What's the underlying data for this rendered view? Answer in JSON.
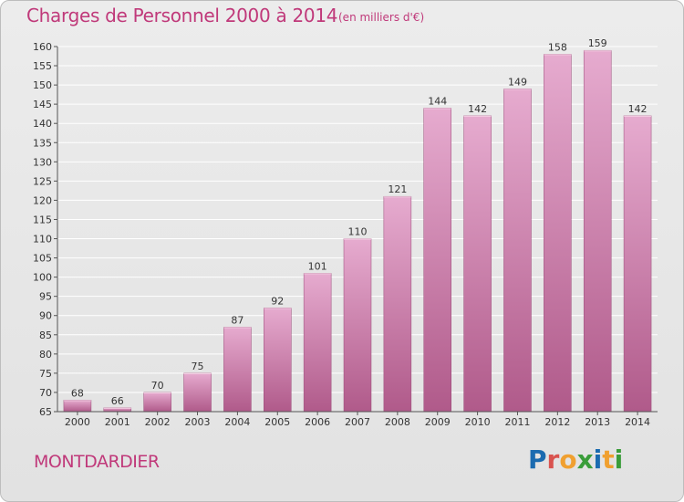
{
  "header": {
    "title": "Charges de Personnel 2000 à 2014",
    "subtitle": "(en milliers d'€)"
  },
  "footer": {
    "commune": "MONTDARDIER",
    "logo_text": "Proxiti",
    "logo_colors": [
      "#1b6bb0",
      "#d9534f",
      "#f0a030",
      "#3a9d3a",
      "#1b6bb0",
      "#f0a030",
      "#3a9d3a"
    ]
  },
  "colors": {
    "title": "#c0397a",
    "bar_top": "#e6abcf",
    "bar_bottom": "#b05a8a",
    "grid": "#ffffff",
    "axis_text": "#333333"
  },
  "chart_data": {
    "type": "bar",
    "title": "Charges de Personnel 2000 à 2014",
    "subtitle": "(en milliers d'€)",
    "categories": [
      "2000",
      "2001",
      "2002",
      "2003",
      "2004",
      "2005",
      "2006",
      "2007",
      "2008",
      "2009",
      "2010",
      "2011",
      "2012",
      "2013",
      "2014"
    ],
    "values": [
      68,
      66,
      70,
      75,
      87,
      92,
      101,
      110,
      121,
      144,
      142,
      149,
      158,
      159,
      142
    ],
    "ylim": [
      65,
      160
    ],
    "yticks": [
      65,
      70,
      75,
      80,
      85,
      90,
      95,
      100,
      105,
      110,
      115,
      120,
      125,
      130,
      135,
      140,
      145,
      150,
      155,
      160
    ],
    "grid": true,
    "data_labels": true
  }
}
